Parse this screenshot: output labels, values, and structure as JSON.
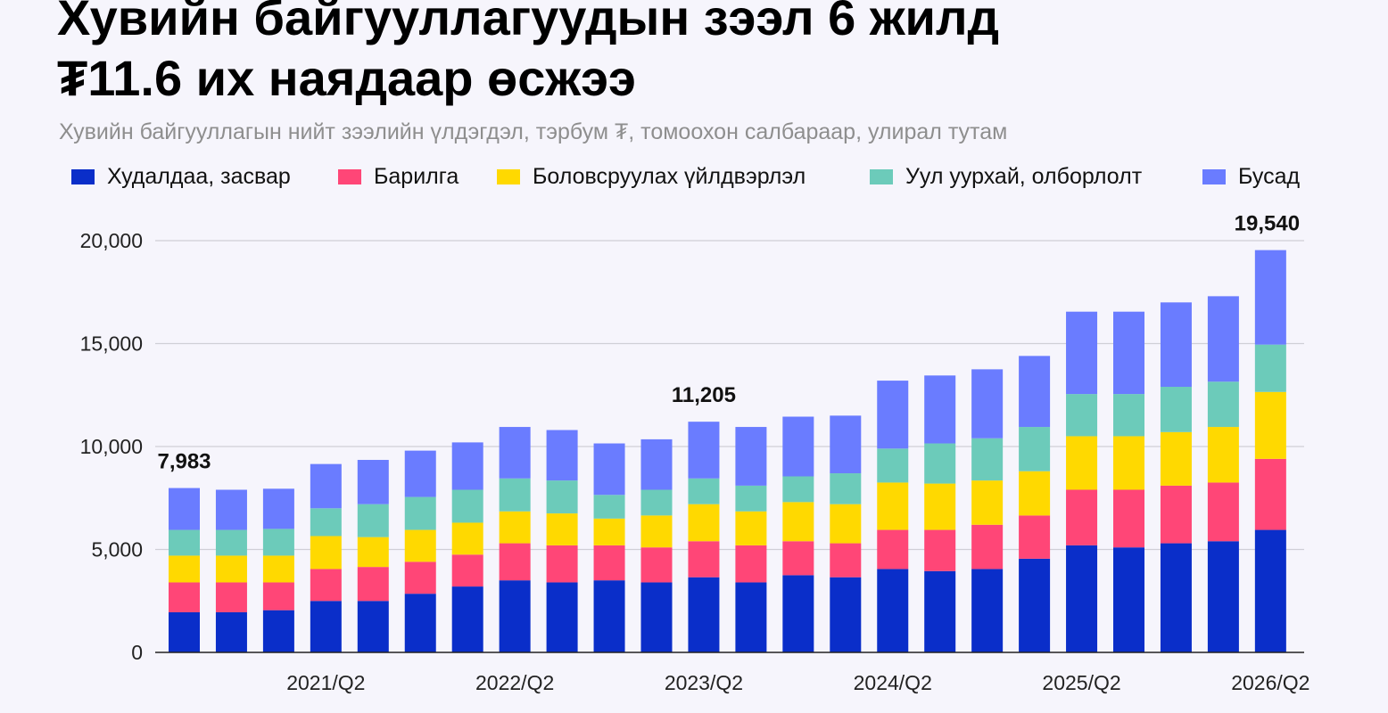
{
  "title_line1": "Хувийн байгууллагуудын зээл 6 жилд",
  "title_line2": "₮11.6 их наядаар өсжээ",
  "subtitle": "Хувийн байгууллагын нийт зээлийн үлдэгдэл, тэрбум ₮, томоохон салбараар, улирал тутам",
  "chart_data": {
    "type": "bar",
    "stacked": true,
    "ylim": [
      0,
      20000
    ],
    "yticks": [
      "0",
      "5,000",
      "10,000",
      "15,000",
      "20,000"
    ],
    "ytick_values": [
      0,
      5000,
      10000,
      15000,
      20000
    ],
    "xtick_labels": [
      {
        "index": 3,
        "label": "2021/Q2"
      },
      {
        "index": 7,
        "label": "2022/Q2"
      },
      {
        "index": 11,
        "label": "2023/Q2"
      },
      {
        "index": 15,
        "label": "2024/Q2"
      },
      {
        "index": 19,
        "label": "2025/Q2"
      },
      {
        "index": 23,
        "label": "2026/Q2"
      }
    ],
    "grid": true,
    "legend_position": "top",
    "series": [
      {
        "name": "Худалдаа, засвар",
        "color": "#0a2ec9",
        "values": [
          1950,
          1950,
          2050,
          2500,
          2500,
          2850,
          3200,
          3500,
          3400,
          3500,
          3400,
          3650,
          3400,
          3750,
          3650,
          4050,
          3950,
          4050,
          4550,
          5200,
          5100,
          5300,
          5400,
          5950
        ]
      },
      {
        "name": "Барилга",
        "color": "#ff4677",
        "values": [
          1450,
          1450,
          1350,
          1550,
          1650,
          1550,
          1550,
          1800,
          1800,
          1700,
          1700,
          1750,
          1800,
          1650,
          1650,
          1900,
          2000,
          2150,
          2100,
          2700,
          2800,
          2800,
          2850,
          3450
        ]
      },
      {
        "name": "Боловсруулах үйлдвэрлэл",
        "color": "#ffd900",
        "values": [
          1300,
          1300,
          1300,
          1600,
          1450,
          1550,
          1550,
          1550,
          1550,
          1300,
          1550,
          1800,
          1650,
          1900,
          1900,
          2300,
          2250,
          2150,
          2150,
          2600,
          2600,
          2600,
          2700,
          3250
        ]
      },
      {
        "name": "Уул уурхай, олборлолт",
        "color": "#6ccbba",
        "values": [
          1250,
          1250,
          1300,
          1350,
          1600,
          1600,
          1600,
          1600,
          1600,
          1150,
          1250,
          1250,
          1250,
          1250,
          1500,
          1650,
          1950,
          2050,
          2150,
          2050,
          2050,
          2200,
          2200,
          2300
        ]
      },
      {
        "name": "Бусад",
        "color": "#6a7cff",
        "values": [
          2033,
          1950,
          1950,
          2150,
          2150,
          2250,
          2300,
          2500,
          2450,
          2500,
          2450,
          2755,
          2850,
          2900,
          2800,
          3300,
          3300,
          3350,
          3450,
          4000,
          4000,
          4100,
          4150,
          4590
        ]
      }
    ],
    "totals": [
      7983,
      7900,
      7950,
      9150,
      9350,
      9800,
      10200,
      10950,
      10800,
      10150,
      10350,
      11205,
      10950,
      11450,
      11500,
      13200,
      13450,
      13750,
      14400,
      16550,
      16550,
      17000,
      17300,
      19540
    ],
    "total_labels": [
      {
        "index": 0,
        "label": "7,983"
      },
      {
        "index": 11,
        "label": "11,205"
      },
      {
        "index": 23,
        "label": "19,540"
      }
    ]
  }
}
